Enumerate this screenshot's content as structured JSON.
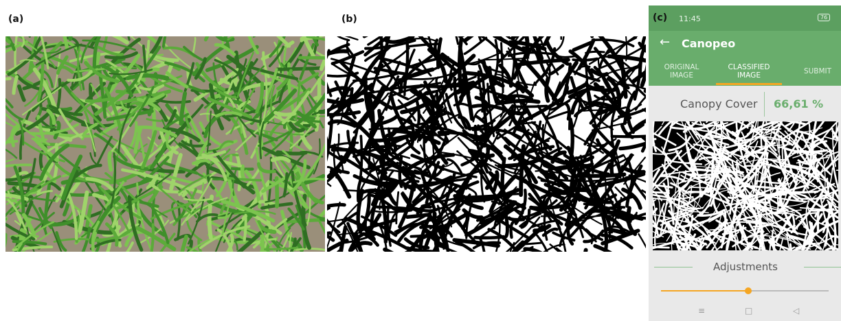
{
  "labels": {
    "a": "(a)",
    "b": "(b)",
    "c": "(c)"
  },
  "app": {
    "status_time": "11:45",
    "battery": "76",
    "title": "Canopeo",
    "tabs": [
      "ORIGINAL IMAGE",
      "CLASSIFIED IMAGE",
      "SUBMIT"
    ],
    "metric_label": "Canopy Cover",
    "metric_value": "66,61 %",
    "section": "Adjustments"
  }
}
